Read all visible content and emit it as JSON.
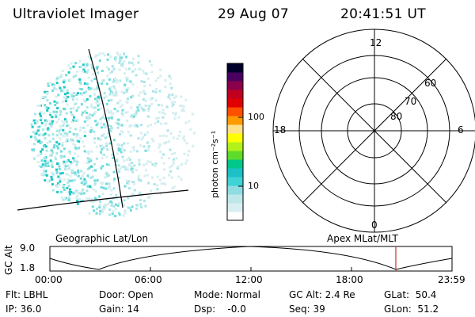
{
  "header": {
    "instrument": "Ultraviolet Imager",
    "date": "29 Aug 07",
    "time": "20:41:51 UT"
  },
  "image_panel": {
    "label": "Geographic Lat/Lon",
    "noise_color": "#27d9d0"
  },
  "colorbar": {
    "unit_label": "photon cm⁻²s⁻¹",
    "tick_labels": [
      "100",
      "10"
    ],
    "colors": [
      "#ffffff",
      "#d9eef0",
      "#bfe7ea",
      "#8fdde0",
      "#3fd3d6",
      "#1ec0c8",
      "#00c78a",
      "#5fdb2a",
      "#b2f21a",
      "#ffff00",
      "#ffe08a",
      "#ff9a00",
      "#ff5000",
      "#e00000",
      "#c00020",
      "#8a004a",
      "#4a0060",
      "#00002a"
    ]
  },
  "polar_plot": {
    "label": "Apex MLat/MLT",
    "mlt_labels": {
      "top": "12",
      "left": "18",
      "right": "6",
      "bottom": "0"
    },
    "lat_labels": [
      "60",
      "70",
      "80"
    ]
  },
  "alt_plot": {
    "y_title": "GC Alt",
    "y_ticks": [
      "9.0",
      "1.8"
    ],
    "x_ticks": [
      "00:00",
      "06:00",
      "12:00",
      "18:00",
      "23:59"
    ],
    "marker_color": "#c0392b"
  },
  "info": {
    "flt": "Flt: LBHL",
    "ip": "IP: 36.0",
    "door": "Door: Open",
    "gain": "Gain: 14",
    "mode": "Mode: Normal",
    "dsp": "Dsp:    -0.0",
    "gcalt": "GC Alt: 2.4 Re",
    "seq": "Seq: 39",
    "glat": "GLat:  50.4",
    "glon": "GLon:  51.2"
  }
}
